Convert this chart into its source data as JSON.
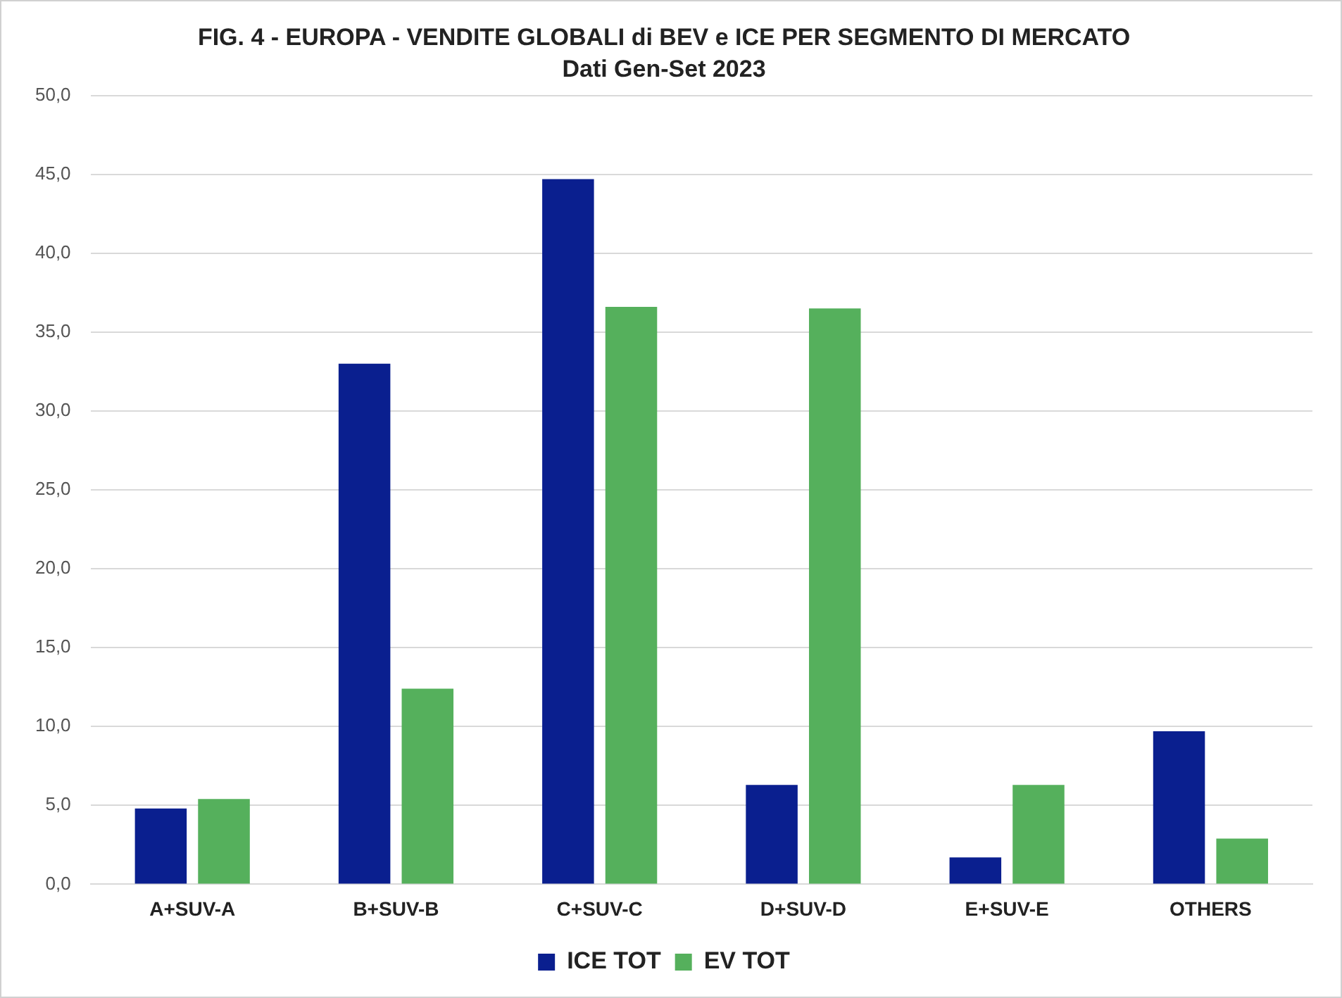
{
  "chart_data": {
    "type": "bar",
    "title": "FIG. 4 - EUROPA - VENDITE GLOBALI di BEV e ICE PER SEGMENTO DI MERCATO",
    "subtitle": "Dati Gen-Set 2023",
    "categories": [
      "A+SUV-A",
      "B+SUV-B",
      "C+SUV-C",
      "D+SUV-D",
      "E+SUV-E",
      "OTHERS"
    ],
    "series": [
      {
        "name": "ICE TOT",
        "color": "#0a1f8f",
        "values": [
          4.8,
          33.0,
          44.7,
          6.3,
          1.7,
          9.7
        ]
      },
      {
        "name": "EV TOT",
        "color": "#55b05c",
        "values": [
          5.4,
          12.4,
          36.6,
          36.5,
          6.3,
          2.9
        ]
      }
    ],
    "ylim": [
      0,
      50
    ],
    "yticks": [
      {
        "value": 0,
        "label": "0,0"
      },
      {
        "value": 5,
        "label": "5,0"
      },
      {
        "value": 10,
        "label": "10,0"
      },
      {
        "value": 15,
        "label": "15,0"
      },
      {
        "value": 20,
        "label": "20,0"
      },
      {
        "value": 25,
        "label": "25,0"
      },
      {
        "value": 30,
        "label": "30,0"
      },
      {
        "value": 35,
        "label": "35,0"
      },
      {
        "value": 40,
        "label": "40,0"
      },
      {
        "value": 45,
        "label": "45,0"
      },
      {
        "value": 50,
        "label": "50,0"
      }
    ],
    "grid": "y",
    "legend": "bottom"
  }
}
